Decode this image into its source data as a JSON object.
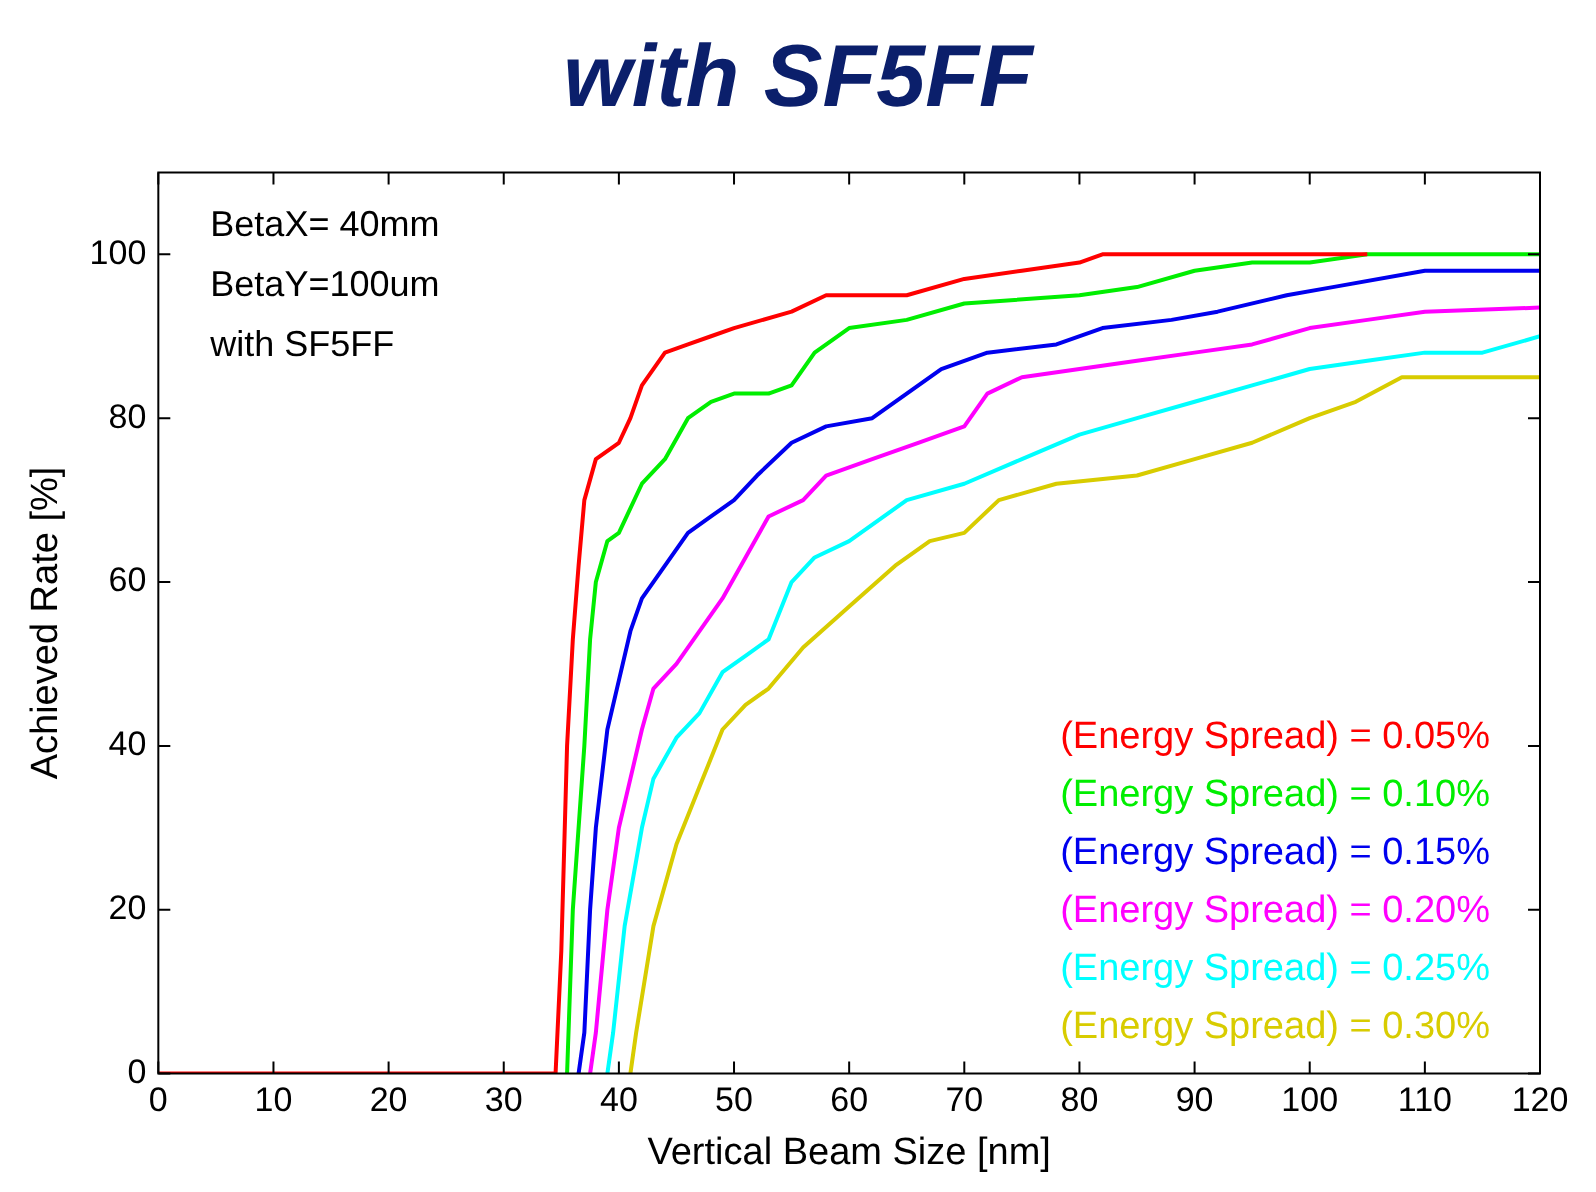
{
  "chart_data": {
    "type": "line",
    "title": "with SF5FF",
    "xlabel": "Vertical Beam Size [nm]",
    "ylabel": "Achieved Rate [%]",
    "xlim": [
      0,
      120
    ],
    "ylim": [
      0,
      110
    ],
    "xticks": [
      0,
      10,
      20,
      30,
      40,
      50,
      60,
      70,
      80,
      90,
      100,
      110,
      120
    ],
    "yticks": [
      0,
      20,
      40,
      60,
      80,
      100
    ],
    "grid": false,
    "legend": "bottom right",
    "marker": "none",
    "line_style": "solid",
    "annotations": [
      "BetaX= 40mm",
      "BetaY=100um",
      "with SF5FF"
    ],
    "series": [
      {
        "name": "(Energy Spread) = 0.05%",
        "color": "#ff0000",
        "x": [
          0,
          34.5,
          35,
          35.5,
          36,
          36.5,
          37,
          38,
          40,
          41,
          42,
          44,
          46,
          48,
          50,
          55,
          58,
          65,
          70,
          75,
          80,
          82,
          105
        ],
        "values": [
          0,
          0,
          15,
          40,
          53,
          62,
          70,
          75,
          77,
          80,
          84,
          88,
          89,
          90,
          91,
          93,
          95,
          95,
          97,
          98,
          99,
          100,
          100
        ]
      },
      {
        "name": "(Energy Spread) = 0.10%",
        "color": "#00ee00",
        "x": [
          35.5,
          36,
          37,
          37.5,
          38,
          39,
          40,
          42,
          44,
          46,
          48,
          50,
          53,
          55,
          57,
          60,
          65,
          70,
          80,
          85,
          90,
          95,
          100,
          105,
          120
        ],
        "values": [
          0,
          20,
          40,
          53,
          60,
          65,
          66,
          72,
          75,
          80,
          82,
          83,
          83,
          84,
          88,
          91,
          92,
          94,
          95,
          96,
          98,
          99,
          99,
          100,
          100
        ]
      },
      {
        "name": "(Energy Spread) = 0.15%",
        "color": "#0000ee",
        "x": [
          36.5,
          37,
          37.5,
          38,
          39,
          40,
          41,
          42,
          44,
          46,
          48,
          50,
          52,
          55,
          58,
          62,
          65,
          68,
          72,
          78,
          82,
          88,
          92,
          98,
          102,
          110,
          120
        ],
        "values": [
          0,
          5,
          20,
          30,
          42,
          48,
          54,
          58,
          62,
          66,
          68,
          70,
          73,
          77,
          79,
          80,
          83,
          86,
          88,
          89,
          91,
          92,
          93,
          95,
          96,
          98,
          98
        ]
      },
      {
        "name": "(Energy Spread) = 0.20%",
        "color": "#ff00ff",
        "x": [
          37.5,
          38,
          39,
          40,
          41,
          42,
          43,
          45,
          47,
          49,
          51,
          53,
          56,
          58,
          62,
          66,
          70,
          72,
          75,
          80,
          85,
          90,
          95,
          100,
          105,
          110,
          120
        ],
        "values": [
          0,
          5,
          20,
          30,
          36,
          42,
          47,
          50,
          54,
          58,
          63,
          68,
          70,
          73,
          75,
          77,
          79,
          83,
          85,
          86,
          87,
          88,
          89,
          91,
          92,
          93,
          93.5
        ]
      },
      {
        "name": "(Energy Spread) = 0.25%",
        "color": "#00ffff",
        "x": [
          39,
          39.5,
          40.5,
          42,
          43,
          45,
          47,
          49,
          51,
          53,
          55,
          57,
          60,
          65,
          70,
          75,
          80,
          85,
          90,
          95,
          100,
          105,
          110,
          115,
          120
        ],
        "values": [
          0,
          5,
          18,
          30,
          36,
          41,
          44,
          49,
          51,
          53,
          60,
          63,
          65,
          70,
          72,
          75,
          78,
          80,
          82,
          84,
          86,
          87,
          88,
          88,
          90
        ]
      },
      {
        "name": "(Energy Spread) = 0.30%",
        "color": "#d8cc00",
        "x": [
          41,
          41.5,
          43,
          45,
          47,
          49,
          51,
          53,
          56,
          60,
          64,
          67,
          70,
          73,
          78,
          85,
          90,
          95,
          100,
          104,
          108,
          113,
          120
        ],
        "values": [
          0,
          5,
          18,
          28,
          35,
          42,
          45,
          47,
          52,
          57,
          62,
          65,
          66,
          70,
          72,
          73,
          75,
          77,
          80,
          82,
          85,
          85,
          85
        ]
      }
    ]
  }
}
